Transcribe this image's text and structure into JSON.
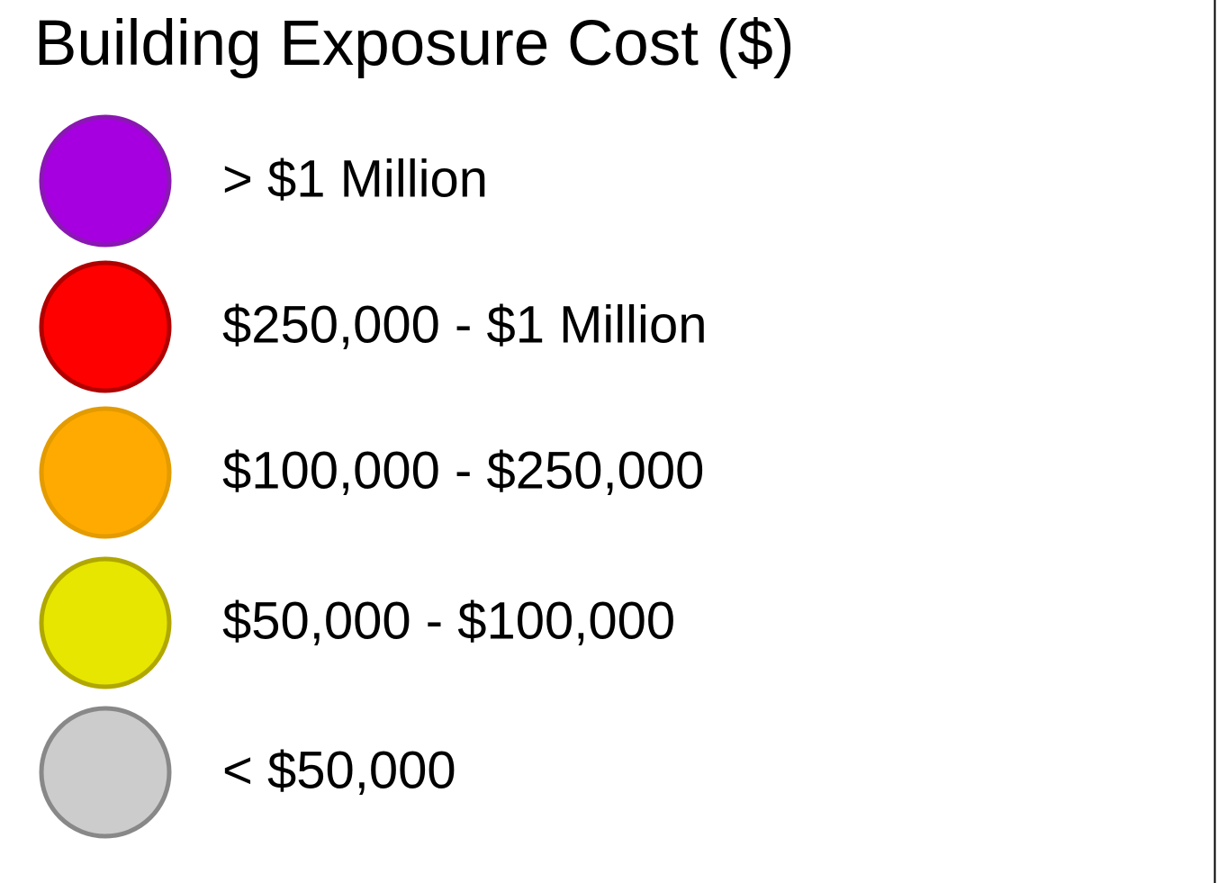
{
  "legend": {
    "title": "Building Exposure Cost ($)",
    "items": [
      {
        "label": "> $1 Million",
        "fill": "#a600e0",
        "stroke": "#8a17b3"
      },
      {
        "label": "$250,000 - $1 Million",
        "fill": "#ff0000",
        "stroke": "#b00000"
      },
      {
        "label": "$100,000 - $250,000",
        "fill": "#ffaa00",
        "stroke": "#e39b00"
      },
      {
        "label": "$50,000 - $100,000",
        "fill": "#e6e600",
        "stroke": "#b0a800"
      },
      {
        "label": "< $50,000",
        "fill": "#cccccc",
        "stroke": "#888888"
      }
    ]
  }
}
